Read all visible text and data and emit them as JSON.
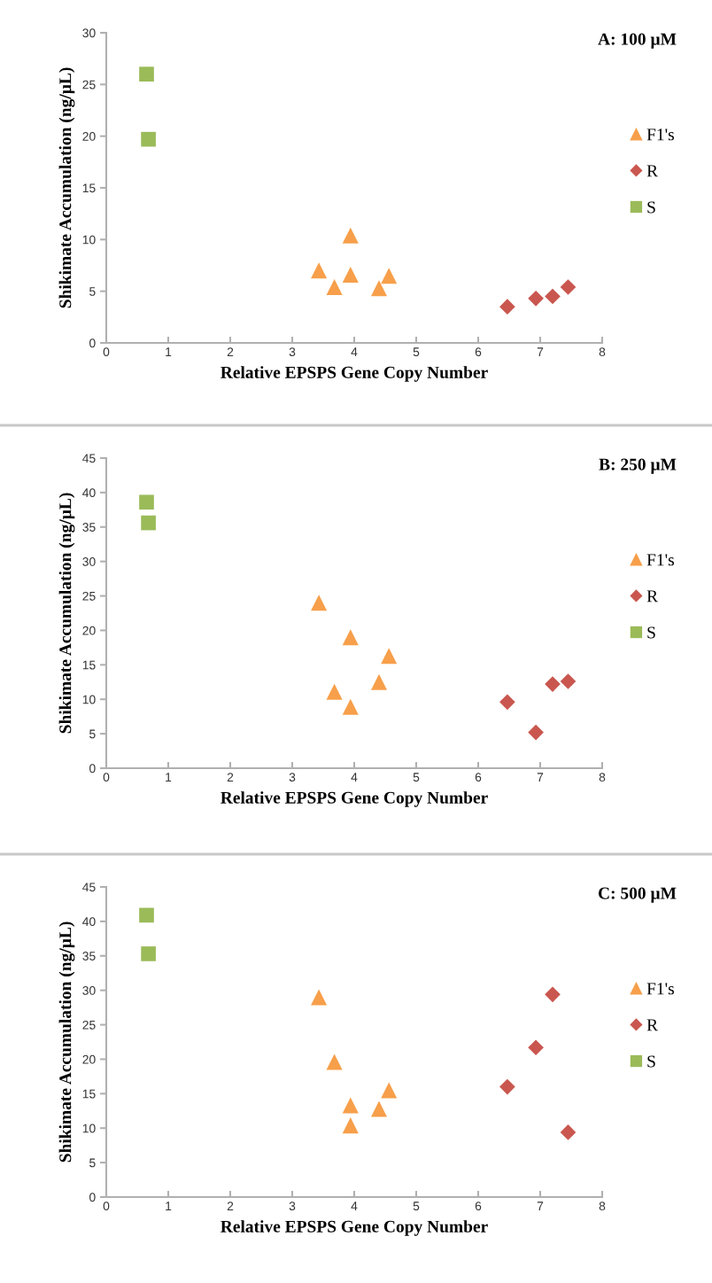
{
  "chart_data": [
    {
      "type": "scatter",
      "title": "A: 100 µM",
      "xlabel": "Relative EPSPS Gene Copy Number",
      "ylabel": "Shikimate Accumulation (ng/µL)",
      "xlim": [
        0,
        8
      ],
      "xticks": [
        0,
        1,
        2,
        3,
        4,
        5,
        6,
        7,
        8
      ],
      "ylim": [
        0,
        30
      ],
      "yticks": [
        0,
        5,
        10,
        15,
        20,
        25,
        30
      ],
      "grid": false,
      "legend": "right",
      "series": [
        {
          "name": "F1's",
          "color": "#f79f4a",
          "marker": "triangle",
          "x": [
            3.43,
            3.68,
            3.94,
            3.94,
            4.4,
            4.56
          ],
          "values": [
            7.0,
            5.4,
            10.4,
            6.6,
            5.3,
            6.5
          ]
        },
        {
          "name": "R",
          "color": "#c9574f",
          "marker": "diamond",
          "x": [
            6.47,
            6.93,
            7.2,
            7.45
          ],
          "values": [
            3.5,
            4.3,
            4.5,
            5.4
          ]
        },
        {
          "name": "S",
          "color": "#9bbb59",
          "marker": "square",
          "x": [
            0.65,
            0.68
          ],
          "values": [
            26.0,
            19.7
          ]
        }
      ]
    },
    {
      "type": "scatter",
      "title": "B: 250 µM",
      "xlabel": "Relative EPSPS Gene Copy Number",
      "ylabel": "Shikimate Accumulation (ng/µL)",
      "xlim": [
        0,
        8
      ],
      "xticks": [
        0,
        1,
        2,
        3,
        4,
        5,
        6,
        7,
        8
      ],
      "ylim": [
        0,
        45
      ],
      "yticks": [
        0,
        5,
        10,
        15,
        20,
        25,
        30,
        35,
        40,
        45
      ],
      "grid": false,
      "legend": "right",
      "series": [
        {
          "name": "F1's",
          "color": "#f79f4a",
          "marker": "triangle",
          "x": [
            3.43,
            3.68,
            3.94,
            3.94,
            4.4,
            4.56
          ],
          "values": [
            24.0,
            11.1,
            19.0,
            8.9,
            12.5,
            16.3
          ]
        },
        {
          "name": "R",
          "color": "#c9574f",
          "marker": "diamond",
          "x": [
            6.47,
            6.93,
            7.2,
            7.45
          ],
          "values": [
            9.6,
            5.2,
            12.2,
            12.6
          ]
        },
        {
          "name": "S",
          "color": "#9bbb59",
          "marker": "square",
          "x": [
            0.65,
            0.68
          ],
          "values": [
            38.6,
            35.6
          ]
        }
      ]
    },
    {
      "type": "scatter",
      "title": "C: 500 µM",
      "xlabel": "Relative EPSPS Gene Copy Number",
      "ylabel": "Shikimate Accumulation (ng/µL)",
      "xlim": [
        0,
        8
      ],
      "xticks": [
        0,
        1,
        2,
        3,
        4,
        5,
        6,
        7,
        8
      ],
      "ylim": [
        0,
        45
      ],
      "yticks": [
        0,
        5,
        10,
        15,
        20,
        25,
        30,
        35,
        40,
        45
      ],
      "grid": false,
      "legend": "right",
      "series": [
        {
          "name": "F1's",
          "color": "#f79f4a",
          "marker": "triangle",
          "x": [
            3.43,
            3.68,
            3.94,
            3.94,
            4.4,
            4.56
          ],
          "values": [
            29.0,
            19.6,
            13.3,
            10.4,
            12.8,
            15.5
          ]
        },
        {
          "name": "R",
          "color": "#c9574f",
          "marker": "diamond",
          "x": [
            6.47,
            6.93,
            7.2,
            7.45
          ],
          "values": [
            16.0,
            21.7,
            29.4,
            9.4
          ]
        },
        {
          "name": "S",
          "color": "#9bbb59",
          "marker": "square",
          "x": [
            0.65,
            0.68
          ],
          "values": [
            40.9,
            35.3
          ]
        }
      ]
    }
  ]
}
